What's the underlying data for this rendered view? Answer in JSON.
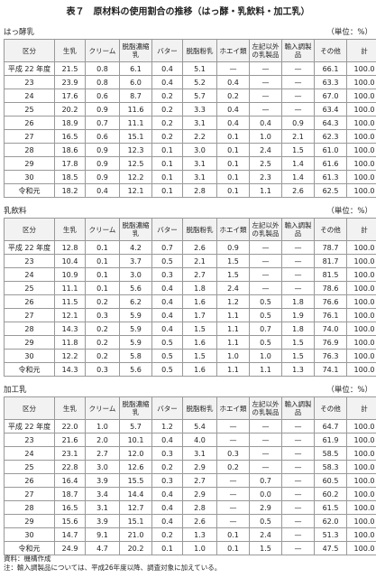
{
  "title": "表７　原材料の使用割合の推移（はっ酵・乳飲料・加工乳）",
  "sections": [
    {
      "name": "はっ酵乳",
      "unit": "（単位：%）",
      "headers": [
        "区分",
        "生乳",
        "クリーム",
        "脱脂濃縮乳",
        "バター",
        "脱脂粉乳",
        "ホエイ類",
        "左記以外の乳製品",
        "輸入調製品",
        "その他",
        "計"
      ],
      "rows": [
        [
          "平成 22 年度",
          "21.5",
          "0.8",
          "6.1",
          "0.4",
          "5.1",
          "—",
          "—",
          "—",
          "66.1",
          "100.0"
        ],
        [
          "23",
          "23.9",
          "0.8",
          "6.0",
          "0.4",
          "5.2",
          "0.4",
          "—",
          "—",
          "63.3",
          "100.0"
        ],
        [
          "24",
          "17.6",
          "0.6",
          "8.7",
          "0.2",
          "5.7",
          "0.2",
          "—",
          "—",
          "67.0",
          "100.0"
        ],
        [
          "25",
          "20.2",
          "0.9",
          "11.6",
          "0.2",
          "3.3",
          "0.4",
          "—",
          "—",
          "63.4",
          "100.0"
        ],
        [
          "26",
          "18.9",
          "0.7",
          "11.1",
          "0.2",
          "3.1",
          "0.4",
          "0.4",
          "0.9",
          "64.3",
          "100.0"
        ],
        [
          "27",
          "16.5",
          "0.6",
          "15.1",
          "0.2",
          "2.2",
          "0.1",
          "1.0",
          "2.1",
          "62.3",
          "100.0"
        ],
        [
          "28",
          "18.6",
          "0.9",
          "12.3",
          "0.1",
          "3.0",
          "0.1",
          "2.4",
          "1.5",
          "61.0",
          "100.0"
        ],
        [
          "29",
          "17.8",
          "0.9",
          "12.5",
          "0.1",
          "3.1",
          "0.1",
          "2.5",
          "1.4",
          "61.6",
          "100.0"
        ],
        [
          "30",
          "18.5",
          "0.9",
          "12.2",
          "0.1",
          "3.1",
          "0.1",
          "2.3",
          "1.4",
          "61.3",
          "100.0"
        ],
        [
          "令和元",
          "18.2",
          "0.4",
          "12.1",
          "0.1",
          "2.8",
          "0.1",
          "1.1",
          "2.6",
          "62.5",
          "100.0"
        ]
      ]
    },
    {
      "name": "乳飲料",
      "unit": "（単位：%）",
      "headers": [
        "区分",
        "生乳",
        "クリーム",
        "脱脂濃縮乳",
        "バター",
        "脱脂粉乳",
        "ホエイ類",
        "左記以外の乳製品",
        "輸入調製品",
        "その他",
        "計"
      ],
      "rows": [
        [
          "平成 22 年度",
          "12.8",
          "0.1",
          "4.2",
          "0.7",
          "2.6",
          "0.9",
          "—",
          "—",
          "78.7",
          "100.0"
        ],
        [
          "23",
          "10.4",
          "0.1",
          "3.7",
          "0.5",
          "2.1",
          "1.5",
          "—",
          "—",
          "81.7",
          "100.0"
        ],
        [
          "24",
          "10.9",
          "0.1",
          "3.0",
          "0.3",
          "2.7",
          "1.5",
          "—",
          "—",
          "81.5",
          "100.0"
        ],
        [
          "25",
          "11.1",
          "0.1",
          "5.6",
          "0.4",
          "1.8",
          "2.4",
          "—",
          "—",
          "78.6",
          "100.0"
        ],
        [
          "26",
          "11.5",
          "0.2",
          "6.2",
          "0.4",
          "1.6",
          "1.2",
          "0.5",
          "1.8",
          "76.6",
          "100.0"
        ],
        [
          "27",
          "12.1",
          "0.3",
          "5.9",
          "0.4",
          "1.7",
          "1.1",
          "0.5",
          "1.9",
          "76.1",
          "100.0"
        ],
        [
          "28",
          "14.3",
          "0.2",
          "5.9",
          "0.4",
          "1.5",
          "1.1",
          "0.7",
          "1.8",
          "74.0",
          "100.0"
        ],
        [
          "29",
          "11.8",
          "0.2",
          "5.9",
          "0.5",
          "1.6",
          "1.1",
          "0.5",
          "1.5",
          "76.9",
          "100.0"
        ],
        [
          "30",
          "12.2",
          "0.2",
          "5.8",
          "0.5",
          "1.5",
          "1.0",
          "1.0",
          "1.5",
          "76.3",
          "100.0"
        ],
        [
          "令和元",
          "14.3",
          "0.3",
          "5.6",
          "0.5",
          "1.6",
          "1.1",
          "1.1",
          "1.3",
          "74.1",
          "100.0"
        ]
      ]
    },
    {
      "name": "加工乳",
      "unit": "（単位：%）",
      "headers": [
        "区分",
        "生乳",
        "クリーム",
        "脱脂濃縮乳",
        "バター",
        "脱脂粉乳",
        "ホエイ類",
        "左記以外の乳製品",
        "輸入調製品",
        "その他",
        "計"
      ],
      "rows": [
        [
          "平成 22 年度",
          "22.0",
          "1.0",
          "5.7",
          "1.2",
          "5.4",
          "—",
          "—",
          "—",
          "64.7",
          "100.0"
        ],
        [
          "23",
          "21.6",
          "2.0",
          "10.1",
          "0.4",
          "4.0",
          "—",
          "—",
          "—",
          "61.9",
          "100.0"
        ],
        [
          "24",
          "23.1",
          "2.7",
          "12.0",
          "0.3",
          "3.1",
          "0.3",
          "—",
          "—",
          "58.5",
          "100.0"
        ],
        [
          "25",
          "22.8",
          "3.0",
          "12.6",
          "0.2",
          "2.9",
          "0.2",
          "—",
          "—",
          "58.3",
          "100.0"
        ],
        [
          "26",
          "16.4",
          "3.9",
          "15.5",
          "0.3",
          "2.7",
          "—",
          "0.7",
          "—",
          "60.5",
          "100.0"
        ],
        [
          "27",
          "18.7",
          "3.4",
          "14.4",
          "0.4",
          "2.9",
          "—",
          "0.0",
          "—",
          "60.2",
          "100.0"
        ],
        [
          "28",
          "16.5",
          "3.1",
          "12.7",
          "0.4",
          "2.8",
          "—",
          "2.9",
          "—",
          "61.5",
          "100.0"
        ],
        [
          "29",
          "15.6",
          "3.9",
          "15.1",
          "0.4",
          "2.6",
          "—",
          "0.5",
          "—",
          "62.0",
          "100.0"
        ],
        [
          "30",
          "14.7",
          "9.1",
          "21.0",
          "0.2",
          "1.3",
          "0.1",
          "2.4",
          "—",
          "51.3",
          "100.0"
        ],
        [
          "令和元",
          "24.9",
          "4.7",
          "20.2",
          "0.1",
          "1.0",
          "0.1",
          "1.5",
          "—",
          "47.5",
          "100.0"
        ]
      ]
    }
  ],
  "footer": {
    "source": "資料：機構作成",
    "note": "注：輸入調製品については、平成26年度以降、調査対象に加えている。"
  }
}
